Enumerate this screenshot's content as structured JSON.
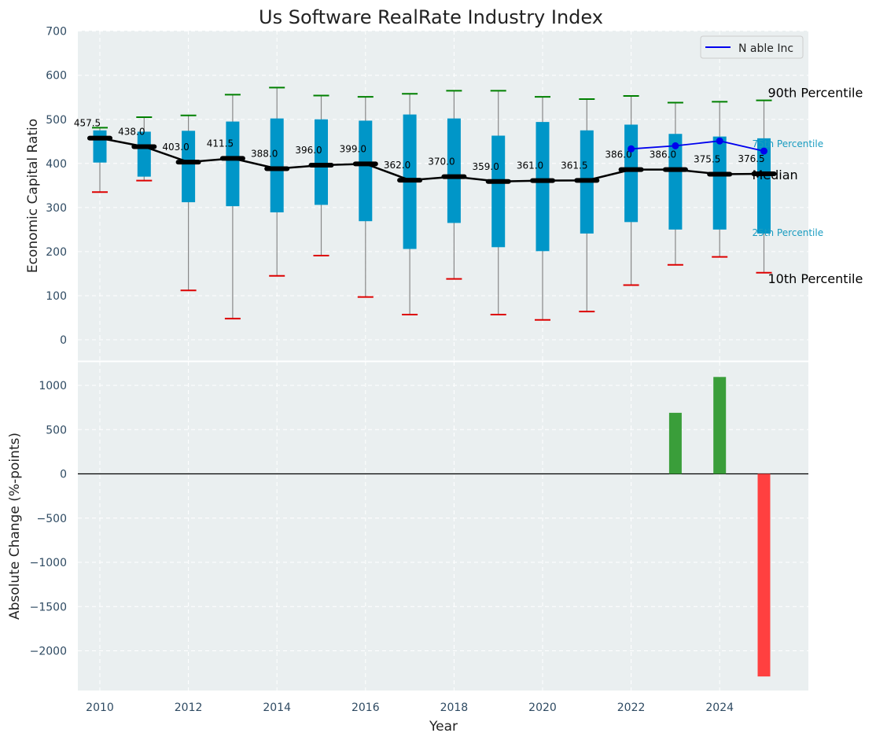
{
  "chart_data": [
    {
      "type": "box",
      "title": "Us Software RealRate Industry Index",
      "xlabel": "",
      "ylabel": "Economic Capital Ratio",
      "ylim": [
        -50,
        700
      ],
      "yticks": [
        0,
        100,
        200,
        300,
        400,
        500,
        600,
        700
      ],
      "years": [
        2010,
        2011,
        2012,
        2013,
        2014,
        2015,
        2016,
        2017,
        2018,
        2019,
        2020,
        2021,
        2022,
        2023,
        2024,
        2025
      ],
      "p10": [
        335,
        361,
        112,
        48,
        145,
        191,
        97,
        57,
        138,
        57,
        45,
        64,
        124,
        170,
        188,
        152
      ],
      "p25": [
        402,
        370,
        312,
        303,
        289,
        306,
        269,
        206,
        265,
        210,
        201,
        241,
        267,
        250,
        250,
        241
      ],
      "median": [
        457.5,
        438.0,
        403.0,
        411.5,
        388.0,
        396.0,
        399.0,
        362.0,
        370.0,
        359.0,
        361.0,
        361.5,
        386.0,
        386.0,
        375.5,
        376.5
      ],
      "median_labels": [
        "457.5",
        "438.0",
        "403.0",
        "411.5",
        "388.0",
        "396.0",
        "399.0",
        "362.0",
        "370.0",
        "359.0",
        "361.0",
        "361.5",
        "386.0",
        "386.0",
        "375.5",
        "376.5"
      ],
      "p75": [
        475,
        472,
        474,
        495,
        502,
        500,
        497,
        511,
        502,
        463,
        494,
        475,
        488,
        467,
        461,
        457
      ],
      "p90": [
        481,
        505,
        509,
        556,
        572,
        554,
        551,
        558,
        565,
        565,
        551,
        546,
        553,
        538,
        540,
        543
      ],
      "whisker_low": [
        335,
        361,
        112,
        48,
        145,
        191,
        97,
        57,
        138,
        57,
        45,
        64,
        124,
        170,
        188,
        152
      ],
      "whisker_high": [
        481,
        505,
        509,
        556,
        572,
        554,
        551,
        558,
        565,
        565,
        551,
        546,
        553,
        538,
        540,
        543
      ],
      "series": [
        {
          "name": "N able Inc",
          "x": [
            2022,
            2023,
            2024,
            2025
          ],
          "values": [
            433,
            440,
            451,
            428
          ]
        }
      ],
      "annotations": {
        "p90": "90th Percentile",
        "p75": "75th Percentile",
        "median": "Median",
        "p25": "25th Percentile",
        "p10": "10th Percentile"
      },
      "legend": "top-right",
      "grid": true
    },
    {
      "type": "bar",
      "title": "",
      "xlabel": "Year",
      "ylabel": "Absolute Change (%-points)",
      "ylim": [
        -2450,
        1310
      ],
      "yticks": [
        -2000,
        -1500,
        -1000,
        -500,
        0,
        500,
        1000
      ],
      "ytick_labels": [
        "−2000",
        "−1500",
        "−1000",
        "−500",
        "0",
        "500",
        "1000"
      ],
      "xticks": [
        2010,
        2012,
        2014,
        2016,
        2018,
        2020,
        2022,
        2024
      ],
      "x": [
        2023,
        2024,
        2025
      ],
      "values": [
        690,
        1095,
        -2290
      ],
      "grid": true
    }
  ],
  "colors": {
    "plot_bg": "#eaeff0",
    "box": "#0096c8",
    "whisker": "#888888",
    "p90_cap": "#008000",
    "p10_cap": "#dd0000",
    "median_line": "#000000",
    "company_line": "#0000ee",
    "positive_bar": "#3a9e3a",
    "negative_bar": "#ff4040",
    "tick_text": "#2e4a62",
    "p75_p25_text": "#1a9cc0"
  }
}
